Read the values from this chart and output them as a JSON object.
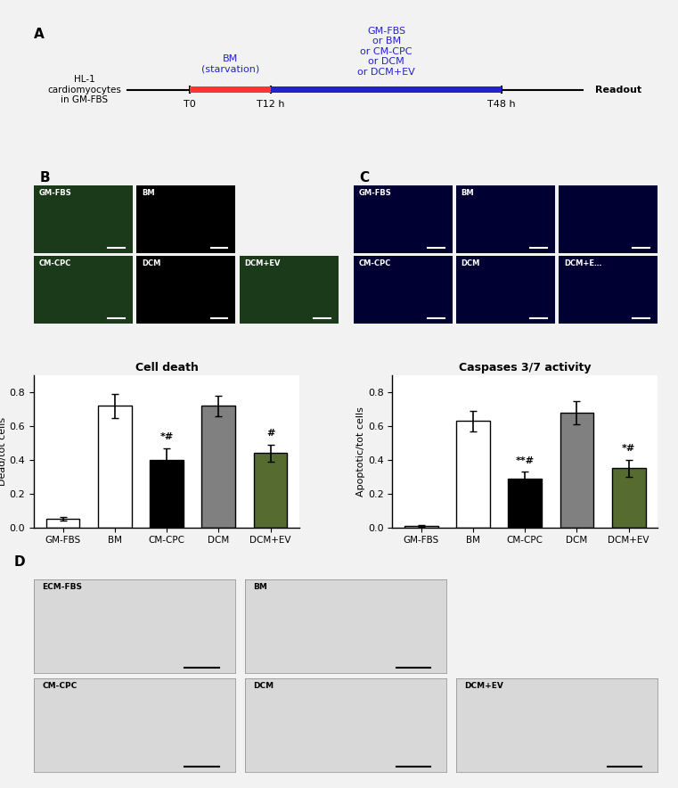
{
  "panel_A": {
    "timeline_label_left": "HL-1\ncardiomyocytes\nin GM-FBS",
    "starvation_label": "BM\n(starvation)",
    "treatment_label": "GM-FBS\nor BM\nor CM-CPC\nor DCM\nor DCM+EV",
    "readout_label": "Readout",
    "t0_label": "T0",
    "t12_label": "T12 h",
    "t48_label": "T48 h",
    "timeline_color": "#000000",
    "starvation_color": "#FF0000",
    "treatment_color": "#0000CC",
    "text_color_blue": "#0000CC",
    "text_color_black": "#000000"
  },
  "panel_B": {
    "title": "Cell death",
    "ylabel": "Dead/tot cells",
    "categories": [
      "GM-FBS",
      "BM",
      "CM-CPC",
      "DCM",
      "DCM+EV"
    ],
    "values": [
      0.05,
      0.72,
      0.4,
      0.72,
      0.44
    ],
    "errors": [
      0.01,
      0.07,
      0.07,
      0.06,
      0.05
    ],
    "colors": [
      "#FFFFFF",
      "#FFFFFF",
      "#000000",
      "#808080",
      "#556B2F"
    ],
    "edge_colors": [
      "#000000",
      "#000000",
      "#000000",
      "#000000",
      "#000000"
    ],
    "ylim": [
      0,
      0.9
    ],
    "yticks": [
      0.0,
      0.2,
      0.4,
      0.6,
      0.8
    ],
    "annotations": [
      "",
      "",
      "*#",
      "",
      "#"
    ],
    "ann_positions": [
      0,
      1,
      2,
      3,
      4
    ]
  },
  "panel_C": {
    "title": "Caspases 3/7 activity",
    "ylabel": "Apoptotic/tot cells",
    "categories": [
      "GM-FBS",
      "BM",
      "CM-CPC",
      "DCM",
      "DCM+EV"
    ],
    "values": [
      0.01,
      0.63,
      0.29,
      0.68,
      0.35
    ],
    "errors": [
      0.005,
      0.06,
      0.04,
      0.07,
      0.05
    ],
    "colors": [
      "#FFFFFF",
      "#FFFFFF",
      "#000000",
      "#808080",
      "#556B2F"
    ],
    "edge_colors": [
      "#000000",
      "#000000",
      "#000000",
      "#000000",
      "#000000"
    ],
    "ylim": [
      0,
      0.9
    ],
    "yticks": [
      0.0,
      0.2,
      0.4,
      0.6,
      0.8
    ],
    "annotations": [
      "",
      "",
      "**#",
      "",
      "*#"
    ],
    "ann_positions": [
      0,
      1,
      2,
      3,
      4
    ]
  },
  "figure_bg": "#F0F0F0",
  "panel_bg": "#FFFFFF"
}
